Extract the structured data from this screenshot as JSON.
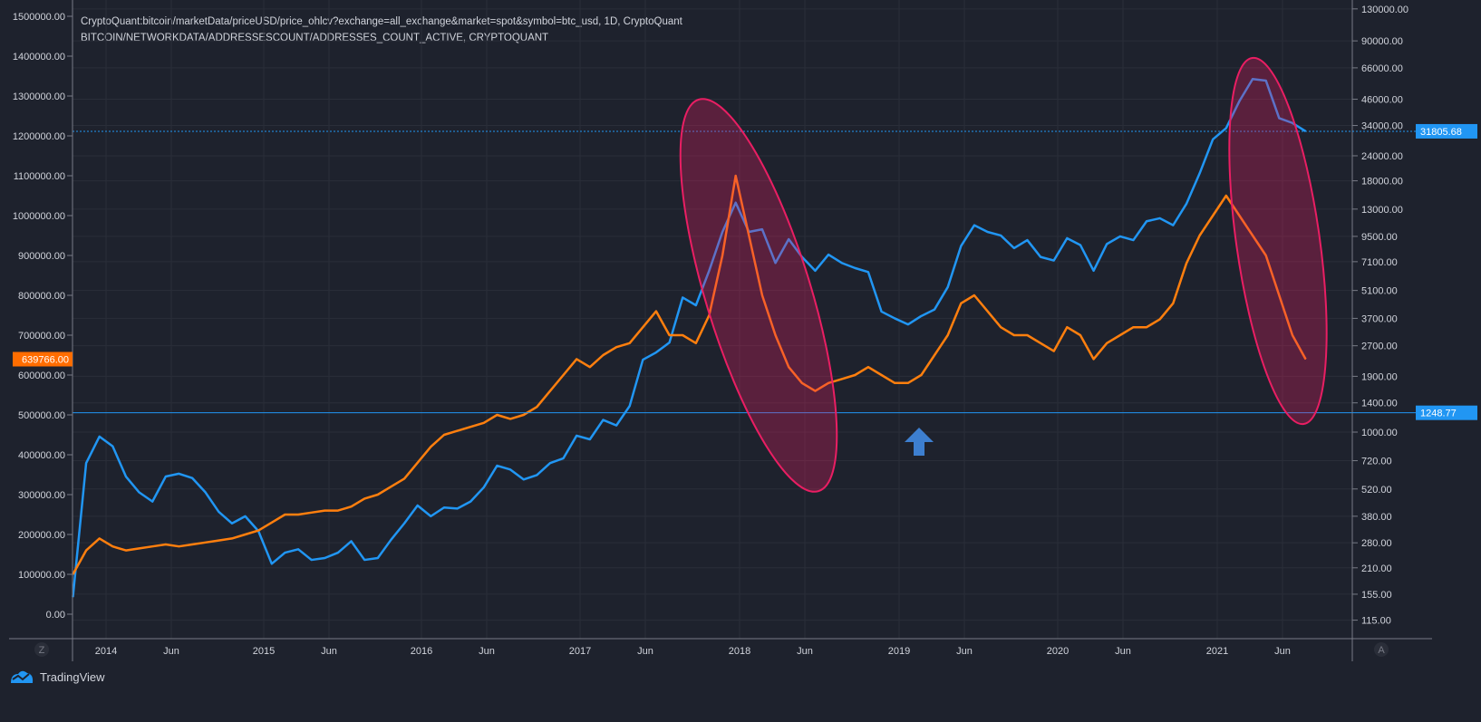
{
  "legend": {
    "line1": "CryptoQuant:bitcoin/marketData/priceUSD/price_ohlcv?exchange=all_exchange&market=spot&symbol=btc_usd, 1D, CryptoQuant",
    "line2": "BITCOIN/NETWORKDATA/ADDRESSESCOUNT/ADDRESSES_COUNT_ACTIVE, CRYPTOQUANT"
  },
  "branding": {
    "logo_text": "TradingView",
    "left_scale_button": "Z",
    "right_scale_button": "A"
  },
  "colors": {
    "background": "#1e222d",
    "price": "#2196f3",
    "active_addresses": "#ff7f0e",
    "ellipse": "#e91e63",
    "arrow": "#3d7fd0",
    "grid": "#2a2e39"
  },
  "chart_data": {
    "type": "line",
    "title": "",
    "grid": true,
    "x_ticks": [
      "2014",
      "Jun",
      "2015",
      "Jun",
      "2016",
      "Jun",
      "2017",
      "Jun",
      "2018",
      "Jun",
      "2019",
      "Jun",
      "2020",
      "Jun",
      "2021",
      "Jun"
    ],
    "left_axis": {
      "scale": "linear",
      "range": [
        0,
        1500000
      ],
      "ticks": [
        "1500000.00",
        "1400000.00",
        "1300000.00",
        "1200000.00",
        "1100000.00",
        "1000000.00",
        "900000.00",
        "800000.00",
        "700000.00",
        "600000.00",
        "500000.00",
        "400000.00",
        "300000.00",
        "200000.00",
        "100000.00",
        "0.00"
      ],
      "last_value_label": "639766.00"
    },
    "right_axis": {
      "scale": "log",
      "range": [
        100,
        130000
      ],
      "ticks": [
        "130000.00",
        "90000.00",
        "66000.00",
        "46000.00",
        "34000.00",
        "24000.00",
        "18000.00",
        "13000.00",
        "9500.00",
        "7100.00",
        "5100.00",
        "3700.00",
        "2700.00",
        "1900.00",
        "1400.00",
        "1000.00",
        "720.00",
        "520.00",
        "380.00",
        "280.00",
        "210.00",
        "155.00",
        "115.00"
      ],
      "last_value_label": "31805.68",
      "hline_label": "1248.77"
    },
    "horizontal_lines": [
      {
        "value": 31805.68,
        "axis": "right",
        "style": "dotted"
      },
      {
        "value": 1248.77,
        "axis": "right",
        "style": "solid"
      }
    ],
    "dates": [
      "2013-10",
      "2013-11",
      "2013-12",
      "2014-01",
      "2014-02",
      "2014-03",
      "2014-04",
      "2014-05",
      "2014-06",
      "2014-07",
      "2014-08",
      "2014-09",
      "2014-10",
      "2014-11",
      "2014-12",
      "2015-01",
      "2015-02",
      "2015-03",
      "2015-04",
      "2015-05",
      "2015-06",
      "2015-07",
      "2015-08",
      "2015-09",
      "2015-10",
      "2015-11",
      "2015-12",
      "2016-01",
      "2016-02",
      "2016-03",
      "2016-04",
      "2016-05",
      "2016-06",
      "2016-07",
      "2016-08",
      "2016-09",
      "2016-10",
      "2016-11",
      "2016-12",
      "2017-01",
      "2017-02",
      "2017-03",
      "2017-04",
      "2017-05",
      "2017-06",
      "2017-07",
      "2017-08",
      "2017-09",
      "2017-10",
      "2017-11",
      "2017-12",
      "2018-01",
      "2018-02",
      "2018-03",
      "2018-04",
      "2018-05",
      "2018-06",
      "2018-07",
      "2018-08",
      "2018-09",
      "2018-10",
      "2018-11",
      "2018-12",
      "2019-01",
      "2019-02",
      "2019-03",
      "2019-04",
      "2019-05",
      "2019-06",
      "2019-07",
      "2019-08",
      "2019-09",
      "2019-10",
      "2019-11",
      "2019-12",
      "2020-01",
      "2020-02",
      "2020-03",
      "2020-04",
      "2020-05",
      "2020-06",
      "2020-07",
      "2020-08",
      "2020-09",
      "2020-10",
      "2020-11",
      "2020-12",
      "2021-01",
      "2021-02",
      "2021-03",
      "2021-04",
      "2021-05",
      "2021-06",
      "2021-07"
    ],
    "series": [
      {
        "axis": "right",
        "color": "#2196f3",
        "values": [
          150,
          700,
          950,
          850,
          600,
          500,
          450,
          600,
          620,
          590,
          500,
          400,
          350,
          380,
          320,
          220,
          250,
          260,
          230,
          235,
          250,
          285,
          230,
          235,
          290,
          350,
          430,
          380,
          420,
          415,
          450,
          530,
          680,
          650,
          580,
          610,
          700,
          740,
          960,
          920,
          1150,
          1080,
          1350,
          2300,
          2500,
          2800,
          4700,
          4300,
          6400,
          10000,
          14000,
          10000,
          10300,
          7000,
          9200,
          7500,
          6400,
          7700,
          7000,
          6600,
          6300,
          4000,
          3700,
          3450,
          3800,
          4100,
          5300,
          8500,
          10800,
          10000,
          9600,
          8300,
          9100,
          7500,
          7200,
          9300,
          8600,
          6400,
          8700,
          9500,
          9100,
          11300,
          11700,
          10800,
          13800,
          19600,
          29000,
          33000,
          45000,
          58000,
          57000,
          37000,
          35000,
          31805.68
        ]
      },
      {
        "axis": "left",
        "color": "#ff7f0e",
        "values": [
          100000,
          160000,
          190000,
          170000,
          160000,
          165000,
          170000,
          175000,
          170000,
          175000,
          180000,
          185000,
          190000,
          200000,
          210000,
          230000,
          250000,
          250000,
          255000,
          260000,
          260000,
          270000,
          290000,
          300000,
          320000,
          340000,
          380000,
          420000,
          450000,
          460000,
          470000,
          480000,
          500000,
          490000,
          500000,
          520000,
          560000,
          600000,
          640000,
          620000,
          650000,
          670000,
          680000,
          720000,
          760000,
          700000,
          700000,
          680000,
          750000,
          900000,
          1100000,
          950000,
          800000,
          700000,
          620000,
          580000,
          560000,
          580000,
          590000,
          600000,
          620000,
          600000,
          580000,
          580000,
          600000,
          650000,
          700000,
          780000,
          800000,
          760000,
          720000,
          700000,
          700000,
          680000,
          660000,
          720000,
          700000,
          640000,
          680000,
          700000,
          720000,
          720000,
          740000,
          780000,
          880000,
          950000,
          1000000,
          1050000,
          1000000,
          950000,
          900000,
          800000,
          700000,
          639766
        ]
      }
    ]
  }
}
